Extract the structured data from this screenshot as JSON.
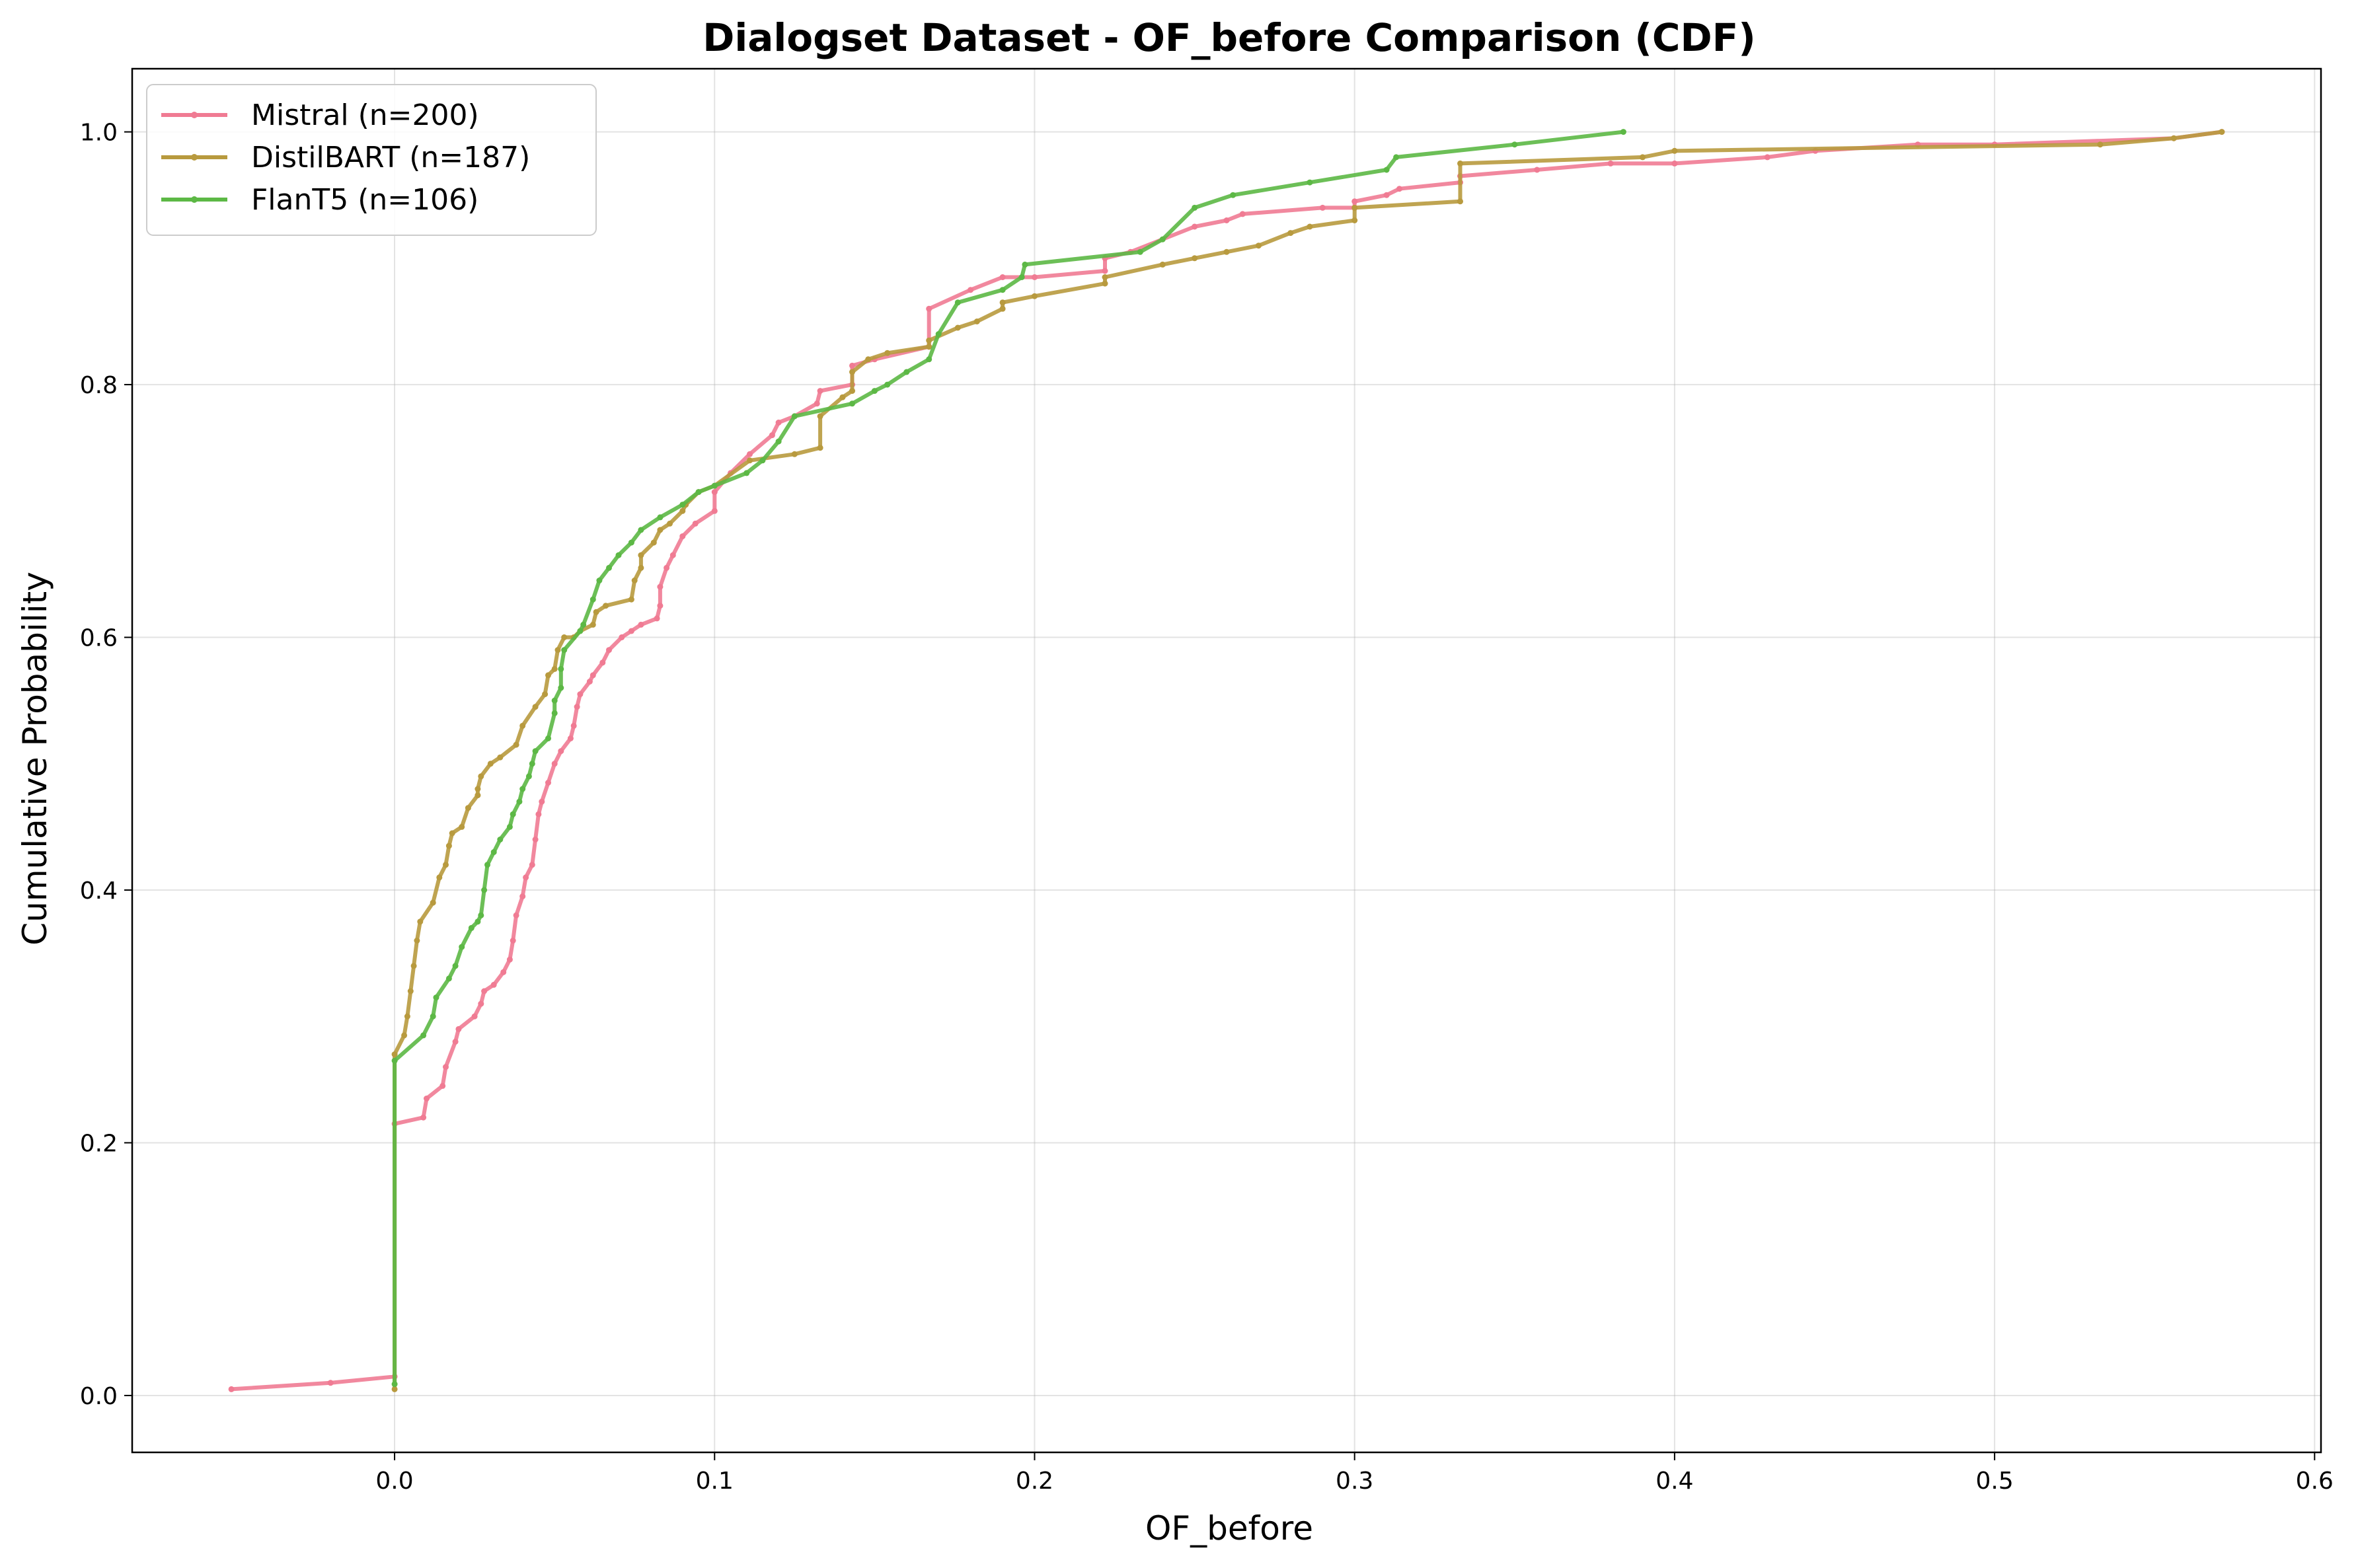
{
  "chart_data": {
    "type": "line",
    "title": "Dialogset Dataset - OF_before Comparison (CDF)",
    "xlabel": "OF_before",
    "ylabel": "Cumulative Probability",
    "xlim": [
      -0.082,
      0.602
    ],
    "ylim": [
      -0.045,
      1.05
    ],
    "xticks": [
      0.0,
      0.1,
      0.2,
      0.3,
      0.4,
      0.5,
      0.6
    ],
    "xtick_labels": [
      "0.0",
      "0.1",
      "0.2",
      "0.3",
      "0.4",
      "0.5",
      "0.6"
    ],
    "yticks": [
      0.0,
      0.2,
      0.4,
      0.6,
      0.8,
      1.0
    ],
    "ytick_labels": [
      "0.0",
      "0.2",
      "0.4",
      "0.6",
      "0.8",
      "1.0"
    ],
    "grid": true,
    "legend_position": "top-left",
    "series": [
      {
        "name": "Mistral (n=200)",
        "color": "#f07b93",
        "points": [
          [
            -0.051,
            0.005
          ],
          [
            -0.02,
            0.01
          ],
          [
            0.0,
            0.015
          ],
          [
            0.0,
            0.215
          ],
          [
            0.009,
            0.22
          ],
          [
            0.01,
            0.235
          ],
          [
            0.015,
            0.245
          ],
          [
            0.016,
            0.26
          ],
          [
            0.019,
            0.28
          ],
          [
            0.02,
            0.29
          ],
          [
            0.025,
            0.3
          ],
          [
            0.027,
            0.31
          ],
          [
            0.028,
            0.32
          ],
          [
            0.031,
            0.325
          ],
          [
            0.034,
            0.335
          ],
          [
            0.036,
            0.345
          ],
          [
            0.037,
            0.36
          ],
          [
            0.038,
            0.38
          ],
          [
            0.04,
            0.395
          ],
          [
            0.041,
            0.41
          ],
          [
            0.043,
            0.42
          ],
          [
            0.044,
            0.44
          ],
          [
            0.045,
            0.46
          ],
          [
            0.046,
            0.47
          ],
          [
            0.048,
            0.485
          ],
          [
            0.05,
            0.5
          ],
          [
            0.052,
            0.51
          ],
          [
            0.055,
            0.52
          ],
          [
            0.056,
            0.53
          ],
          [
            0.057,
            0.545
          ],
          [
            0.058,
            0.555
          ],
          [
            0.061,
            0.565
          ],
          [
            0.062,
            0.57
          ],
          [
            0.065,
            0.58
          ],
          [
            0.067,
            0.59
          ],
          [
            0.071,
            0.6
          ],
          [
            0.074,
            0.605
          ],
          [
            0.077,
            0.61
          ],
          [
            0.082,
            0.615
          ],
          [
            0.083,
            0.625
          ],
          [
            0.083,
            0.64
          ],
          [
            0.085,
            0.655
          ],
          [
            0.087,
            0.665
          ],
          [
            0.09,
            0.68
          ],
          [
            0.094,
            0.69
          ],
          [
            0.1,
            0.7
          ],
          [
            0.1,
            0.715
          ],
          [
            0.105,
            0.73
          ],
          [
            0.111,
            0.745
          ],
          [
            0.118,
            0.76
          ],
          [
            0.12,
            0.77
          ],
          [
            0.125,
            0.775
          ],
          [
            0.132,
            0.785
          ],
          [
            0.133,
            0.795
          ],
          [
            0.143,
            0.8
          ],
          [
            0.143,
            0.815
          ],
          [
            0.15,
            0.82
          ],
          [
            0.167,
            0.83
          ],
          [
            0.167,
            0.86
          ],
          [
            0.18,
            0.875
          ],
          [
            0.19,
            0.885
          ],
          [
            0.2,
            0.885
          ],
          [
            0.222,
            0.89
          ],
          [
            0.222,
            0.9
          ],
          [
            0.23,
            0.905
          ],
          [
            0.25,
            0.925
          ],
          [
            0.26,
            0.93
          ],
          [
            0.265,
            0.935
          ],
          [
            0.29,
            0.94
          ],
          [
            0.3,
            0.94
          ],
          [
            0.3,
            0.945
          ],
          [
            0.31,
            0.95
          ],
          [
            0.314,
            0.955
          ],
          [
            0.333,
            0.96
          ],
          [
            0.333,
            0.965
          ],
          [
            0.357,
            0.97
          ],
          [
            0.38,
            0.975
          ],
          [
            0.4,
            0.975
          ],
          [
            0.429,
            0.98
          ],
          [
            0.444,
            0.985
          ],
          [
            0.476,
            0.99
          ],
          [
            0.5,
            0.99
          ],
          [
            0.556,
            0.995
          ],
          [
            0.571,
            1.0
          ]
        ]
      },
      {
        "name": "DistilBART (n=187)",
        "color": "#b89a3e",
        "points": [
          [
            0.0,
            0.005
          ],
          [
            0.0,
            0.27
          ],
          [
            0.003,
            0.285
          ],
          [
            0.004,
            0.3
          ],
          [
            0.005,
            0.32
          ],
          [
            0.006,
            0.34
          ],
          [
            0.007,
            0.36
          ],
          [
            0.008,
            0.375
          ],
          [
            0.012,
            0.39
          ],
          [
            0.014,
            0.41
          ],
          [
            0.016,
            0.42
          ],
          [
            0.017,
            0.435
          ],
          [
            0.018,
            0.445
          ],
          [
            0.021,
            0.45
          ],
          [
            0.023,
            0.465
          ],
          [
            0.026,
            0.475
          ],
          [
            0.026,
            0.48
          ],
          [
            0.027,
            0.49
          ],
          [
            0.03,
            0.5
          ],
          [
            0.033,
            0.505
          ],
          [
            0.038,
            0.515
          ],
          [
            0.04,
            0.53
          ],
          [
            0.044,
            0.545
          ],
          [
            0.047,
            0.555
          ],
          [
            0.048,
            0.57
          ],
          [
            0.05,
            0.575
          ],
          [
            0.051,
            0.59
          ],
          [
            0.053,
            0.6
          ],
          [
            0.056,
            0.6
          ],
          [
            0.058,
            0.605
          ],
          [
            0.062,
            0.61
          ],
          [
            0.063,
            0.62
          ],
          [
            0.066,
            0.625
          ],
          [
            0.074,
            0.63
          ],
          [
            0.075,
            0.645
          ],
          [
            0.077,
            0.655
          ],
          [
            0.077,
            0.665
          ],
          [
            0.081,
            0.675
          ],
          [
            0.083,
            0.685
          ],
          [
            0.086,
            0.69
          ],
          [
            0.09,
            0.7
          ],
          [
            0.091,
            0.705
          ],
          [
            0.095,
            0.715
          ],
          [
            0.1,
            0.72
          ],
          [
            0.111,
            0.74
          ],
          [
            0.125,
            0.745
          ],
          [
            0.133,
            0.75
          ],
          [
            0.133,
            0.775
          ],
          [
            0.14,
            0.79
          ],
          [
            0.143,
            0.795
          ],
          [
            0.143,
            0.81
          ],
          [
            0.148,
            0.82
          ],
          [
            0.154,
            0.825
          ],
          [
            0.167,
            0.83
          ],
          [
            0.167,
            0.835
          ],
          [
            0.176,
            0.845
          ],
          [
            0.182,
            0.85
          ],
          [
            0.19,
            0.86
          ],
          [
            0.19,
            0.865
          ],
          [
            0.2,
            0.87
          ],
          [
            0.222,
            0.88
          ],
          [
            0.222,
            0.885
          ],
          [
            0.24,
            0.895
          ],
          [
            0.25,
            0.9
          ],
          [
            0.26,
            0.905
          ],
          [
            0.27,
            0.91
          ],
          [
            0.28,
            0.92
          ],
          [
            0.286,
            0.925
          ],
          [
            0.3,
            0.93
          ],
          [
            0.3,
            0.94
          ],
          [
            0.333,
            0.945
          ],
          [
            0.333,
            0.975
          ],
          [
            0.39,
            0.98
          ],
          [
            0.4,
            0.985
          ],
          [
            0.533,
            0.99
          ],
          [
            0.556,
            0.995
          ],
          [
            0.571,
            1.0
          ]
        ]
      },
      {
        "name": "FlanT5 (n=106)",
        "color": "#5cb845",
        "points": [
          [
            0.0,
            0.009
          ],
          [
            0.0,
            0.265
          ],
          [
            0.009,
            0.285
          ],
          [
            0.012,
            0.3
          ],
          [
            0.013,
            0.315
          ],
          [
            0.017,
            0.33
          ],
          [
            0.019,
            0.34
          ],
          [
            0.021,
            0.355
          ],
          [
            0.024,
            0.37
          ],
          [
            0.026,
            0.375
          ],
          [
            0.027,
            0.38
          ],
          [
            0.028,
            0.4
          ],
          [
            0.029,
            0.42
          ],
          [
            0.031,
            0.43
          ],
          [
            0.033,
            0.44
          ],
          [
            0.036,
            0.45
          ],
          [
            0.037,
            0.46
          ],
          [
            0.039,
            0.47
          ],
          [
            0.04,
            0.48
          ],
          [
            0.042,
            0.49
          ],
          [
            0.043,
            0.5
          ],
          [
            0.044,
            0.51
          ],
          [
            0.048,
            0.52
          ],
          [
            0.05,
            0.54
          ],
          [
            0.05,
            0.55
          ],
          [
            0.052,
            0.56
          ],
          [
            0.052,
            0.575
          ],
          [
            0.053,
            0.59
          ],
          [
            0.058,
            0.605
          ],
          [
            0.059,
            0.61
          ],
          [
            0.062,
            0.63
          ],
          [
            0.064,
            0.645
          ],
          [
            0.067,
            0.655
          ],
          [
            0.07,
            0.665
          ],
          [
            0.074,
            0.675
          ],
          [
            0.077,
            0.685
          ],
          [
            0.083,
            0.695
          ],
          [
            0.09,
            0.705
          ],
          [
            0.095,
            0.715
          ],
          [
            0.1,
            0.72
          ],
          [
            0.11,
            0.73
          ],
          [
            0.115,
            0.74
          ],
          [
            0.12,
            0.755
          ],
          [
            0.125,
            0.775
          ],
          [
            0.143,
            0.785
          ],
          [
            0.15,
            0.795
          ],
          [
            0.154,
            0.8
          ],
          [
            0.16,
            0.81
          ],
          [
            0.167,
            0.82
          ],
          [
            0.17,
            0.84
          ],
          [
            0.176,
            0.865
          ],
          [
            0.19,
            0.875
          ],
          [
            0.196,
            0.885
          ],
          [
            0.197,
            0.895
          ],
          [
            0.233,
            0.905
          ],
          [
            0.24,
            0.915
          ],
          [
            0.25,
            0.94
          ],
          [
            0.262,
            0.95
          ],
          [
            0.286,
            0.96
          ],
          [
            0.31,
            0.97
          ],
          [
            0.313,
            0.98
          ],
          [
            0.35,
            0.99
          ],
          [
            0.384,
            1.0
          ]
        ]
      }
    ]
  }
}
